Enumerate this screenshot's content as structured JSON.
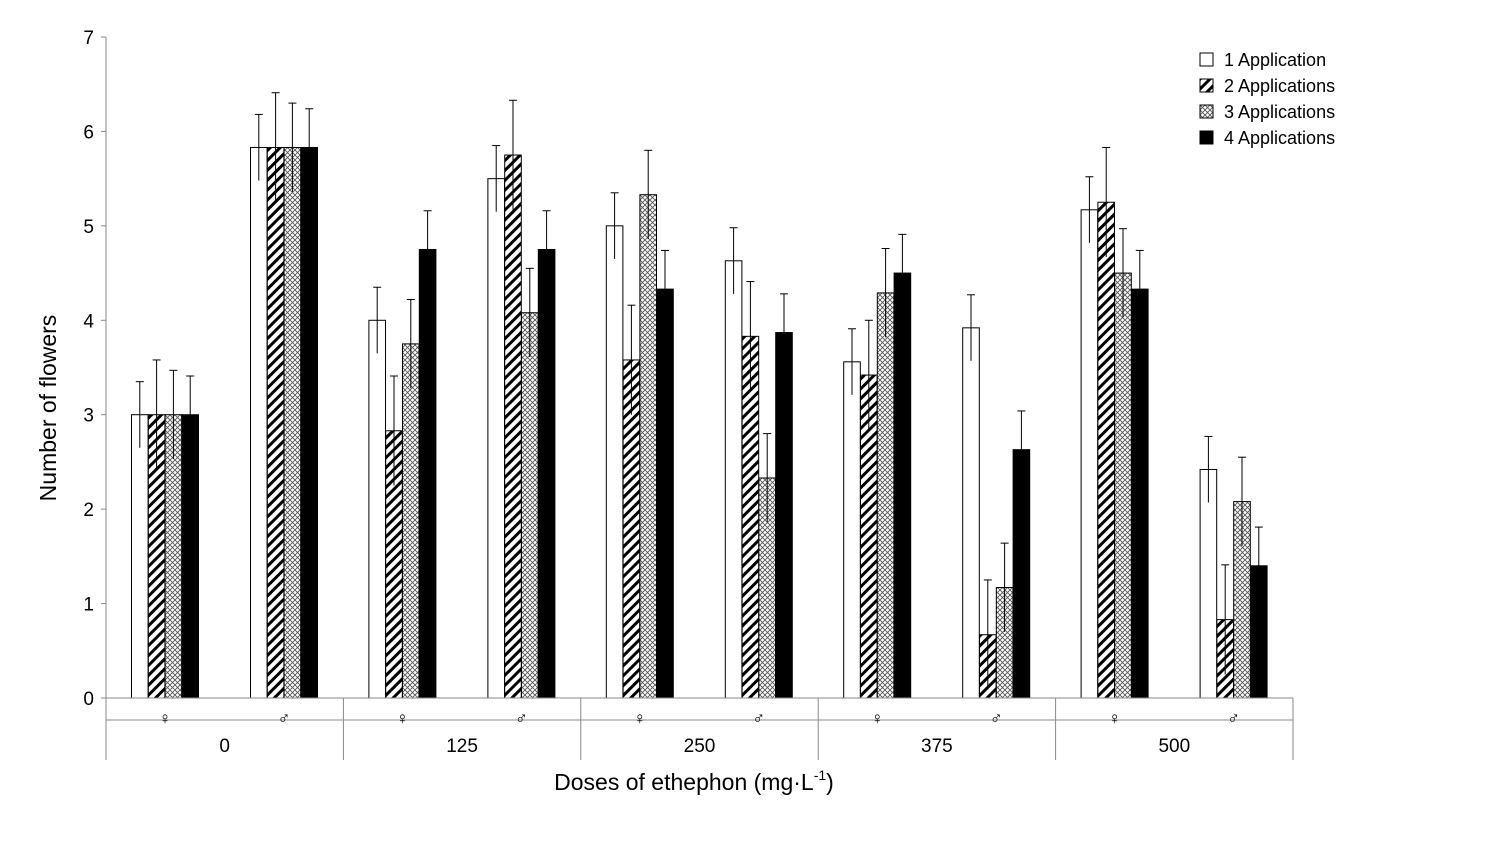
{
  "chart_data": {
    "type": "bar",
    "xlabel": "Doses of ethephon (mg·L",
    "xlabel_superscript": "-1",
    "xlabel_suffix": ")",
    "ylabel": "Number of flowers",
    "ylim": [
      0,
      7
    ],
    "yticks": [
      "0",
      "1",
      "2",
      "3",
      "4",
      "5",
      "6",
      "7"
    ],
    "grid": false,
    "legend_position": "top-right",
    "doses": [
      "0",
      "125",
      "250",
      "375",
      "500"
    ],
    "sexes": [
      "♀",
      "♂"
    ],
    "series": [
      {
        "name": "1 Application",
        "pattern": "white",
        "values": [
          3.0,
          5.83,
          4.0,
          5.5,
          5.0,
          4.63,
          3.56,
          3.92,
          5.17,
          2.42
        ],
        "errors": [
          0.35,
          0.35,
          0.35,
          0.35,
          0.35,
          0.35,
          0.35,
          0.35,
          0.35,
          0.35
        ]
      },
      {
        "name": "2 Applications",
        "pattern": "diagonal",
        "values": [
          3.0,
          5.83,
          2.83,
          5.75,
          3.58,
          3.83,
          3.42,
          0.67,
          5.25,
          0.83
        ],
        "errors": [
          0.58,
          0.58,
          0.58,
          0.58,
          0.58,
          0.58,
          0.58,
          0.58,
          0.58,
          0.58
        ]
      },
      {
        "name": "3 Applications",
        "pattern": "crosshatch",
        "values": [
          3.0,
          5.83,
          3.75,
          4.08,
          5.33,
          2.33,
          4.29,
          1.17,
          4.5,
          2.08
        ],
        "errors": [
          0.47,
          0.47,
          0.47,
          0.47,
          0.47,
          0.47,
          0.47,
          0.47,
          0.47,
          0.47
        ]
      },
      {
        "name": "4 Applications",
        "pattern": "black",
        "values": [
          3.0,
          5.83,
          4.75,
          4.75,
          4.33,
          3.87,
          4.5,
          2.63,
          4.33,
          1.4
        ],
        "errors": [
          0.41,
          0.41,
          0.41,
          0.41,
          0.41,
          0.41,
          0.41,
          0.41,
          0.41,
          0.41
        ]
      }
    ]
  }
}
